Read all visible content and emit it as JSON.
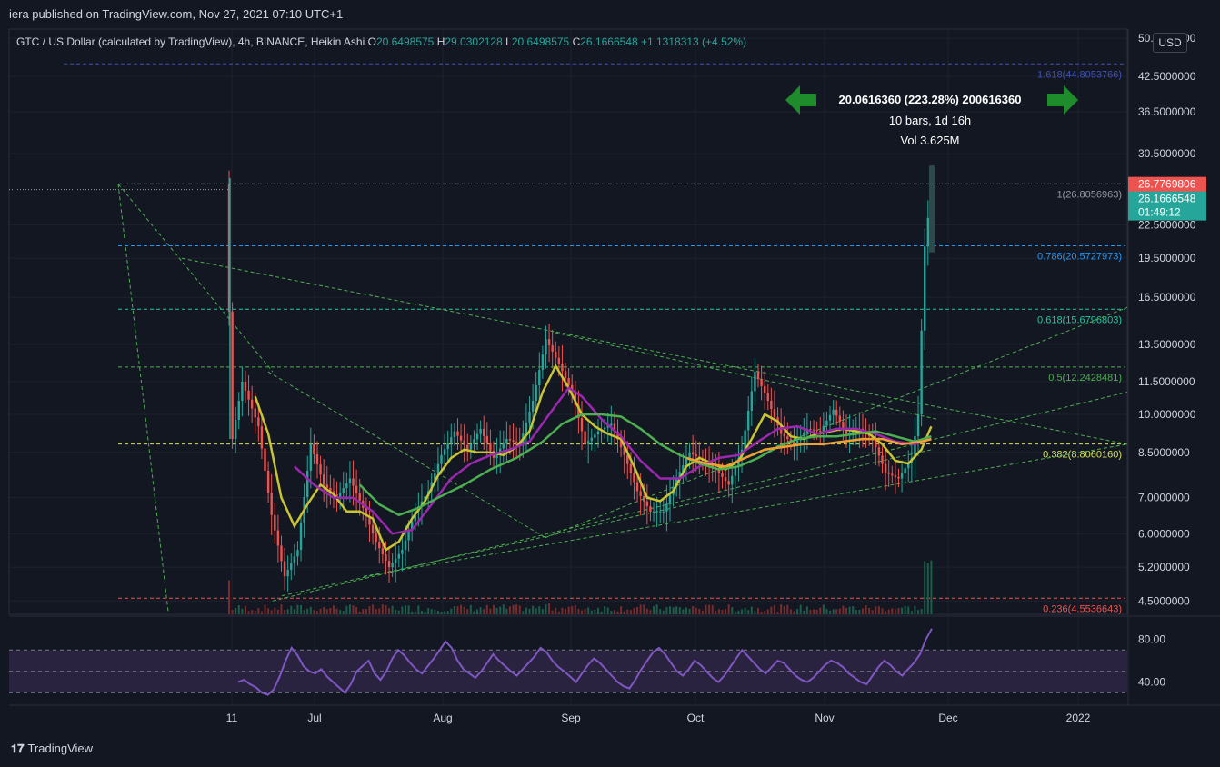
{
  "header": {
    "publisher": "iera published on TradingView.com, Nov 27, 2021 07:10 UTC+1"
  },
  "legend": {
    "symbol": "GTC / US Dollar (calculated by TradingView), 4h, BINANCE, Heikin Ashi",
    "o_label": "O",
    "o_value": "20.6498575",
    "h_label": "H",
    "h_value": "29.0302128",
    "l_label": "L",
    "l_value": "20.6498575",
    "c_label": "C",
    "c_value": "26.1666548",
    "change": "+1.1318313 (+4.52%)"
  },
  "currency": "USD",
  "footer": {
    "brand": "TradingView",
    "logo_icon": "tv-logo-icon"
  },
  "colors": {
    "bg": "#131722",
    "up": "#26a69a",
    "down": "#ef5350",
    "ma_yellow": "#c9c42f",
    "ma_purple": "#9c27b0",
    "ma_green": "#4caf50",
    "ma_orange": "#f0a030",
    "rsi": "#7e57c2"
  },
  "chart_data": {
    "type": "candlestick",
    "price_scale": "log",
    "y_ticks": [
      "50.0000000",
      "42.5000000",
      "36.5000000",
      "30.5000000",
      "22.5000000",
      "19.5000000",
      "16.5000000",
      "13.5000000",
      "11.5000000",
      "10.0000000",
      "8.5000000",
      "7.0000000",
      "6.0000000",
      "5.2000000",
      "4.5000000"
    ],
    "y_tick_values": [
      50,
      42.5,
      36.5,
      30.5,
      22.5,
      19.5,
      16.5,
      13.5,
      11.5,
      10,
      8.5,
      7,
      6,
      5.2,
      4.5
    ],
    "x_ticks": [
      "11",
      "Jul",
      "Aug",
      "Sep",
      "Oct",
      "Nov",
      "Dec",
      "2022"
    ],
    "price_labels": [
      {
        "text": "26.7769806",
        "value": 26.7769806,
        "color": "#ef5350"
      },
      {
        "text": "26.1666548",
        "value": 26.1666548,
        "color": "#26a69a",
        "sub": "01:49:12"
      }
    ],
    "fib_levels": [
      {
        "label": "1.618(44.8053766)",
        "value": 44.8053766,
        "color": "#3f51b5"
      },
      {
        "label": "1(26.8056963)",
        "value": 26.8056963,
        "color": "#9598a1"
      },
      {
        "label": "0.786(20.5727973)",
        "value": 20.5727973,
        "color": "#2196f3"
      },
      {
        "label": "0.618(15.6796803)",
        "value": 15.6796803,
        "color": "#26c6a0"
      },
      {
        "label": "0.5(12.2428481)",
        "value": 12.2428481,
        "color": "#4caf50"
      },
      {
        "label": "0.382(8.8060160)",
        "value": 8.806016,
        "color": "#d4e157"
      },
      {
        "label": "0.236(4.5536643)",
        "value": 4.5536643,
        "color": "#ef5350"
      }
    ],
    "measure": {
      "line1": "20.0616360 (223.28%) 200616360",
      "line2": "10 bars, 1d 16h",
      "line3": "Vol 3.625M"
    },
    "price_path": [
      [
        0,
        26.8
      ],
      [
        2,
        9.0
      ],
      [
        5,
        11.5
      ],
      [
        10,
        9.5
      ],
      [
        14,
        6.5
      ],
      [
        18,
        5.0
      ],
      [
        22,
        5.6
      ],
      [
        26,
        8.8
      ],
      [
        30,
        7.4
      ],
      [
        34,
        7.0
      ],
      [
        38,
        7.6
      ],
      [
        42,
        6.7
      ],
      [
        46,
        5.8
      ],
      [
        50,
        5.2
      ],
      [
        54,
        5.6
      ],
      [
        58,
        6.6
      ],
      [
        62,
        7.2
      ],
      [
        66,
        8.4
      ],
      [
        70,
        9.3
      ],
      [
        74,
        8.6
      ],
      [
        78,
        9.4
      ],
      [
        82,
        8.3
      ],
      [
        86,
        9.0
      ],
      [
        90,
        8.8
      ],
      [
        94,
        10.6
      ],
      [
        98,
        13.8
      ],
      [
        102,
        12.4
      ],
      [
        106,
        11.0
      ],
      [
        110,
        8.8
      ],
      [
        114,
        9.3
      ],
      [
        118,
        9.6
      ],
      [
        122,
        8.4
      ],
      [
        126,
        7.2
      ],
      [
        130,
        6.6
      ],
      [
        134,
        6.6
      ],
      [
        138,
        7.6
      ],
      [
        142,
        8.5
      ],
      [
        146,
        8.2
      ],
      [
        150,
        7.9
      ],
      [
        154,
        7.4
      ],
      [
        158,
        8.6
      ],
      [
        162,
        12.0
      ],
      [
        166,
        10.6
      ],
      [
        170,
        9.2
      ],
      [
        174,
        8.8
      ],
      [
        178,
        9.4
      ],
      [
        182,
        9.3
      ],
      [
        186,
        10.2
      ],
      [
        190,
        9.2
      ],
      [
        194,
        9.4
      ],
      [
        198,
        9.0
      ],
      [
        202,
        7.8
      ],
      [
        206,
        7.6
      ],
      [
        210,
        8.3
      ],
      [
        212,
        10.0
      ],
      [
        214,
        20.5
      ],
      [
        216,
        26.2
      ]
    ],
    "moving_averages": [
      {
        "name": "",
        "color": "#c9c42f",
        "points": [
          [
            8,
            10.8
          ],
          [
            12,
            9.2
          ],
          [
            16,
            7.0
          ],
          [
            20,
            6.2
          ],
          [
            24,
            6.8
          ],
          [
            28,
            7.4
          ],
          [
            32,
            7.1
          ],
          [
            36,
            6.6
          ],
          [
            40,
            6.6
          ],
          [
            44,
            6.4
          ],
          [
            48,
            5.6
          ],
          [
            52,
            5.8
          ],
          [
            56,
            6.4
          ],
          [
            60,
            6.9
          ],
          [
            64,
            7.7
          ],
          [
            68,
            8.3
          ],
          [
            72,
            8.6
          ],
          [
            76,
            8.5
          ],
          [
            80,
            8.5
          ],
          [
            84,
            8.4
          ],
          [
            88,
            8.7
          ],
          [
            92,
            9.3
          ],
          [
            96,
            11.0
          ],
          [
            100,
            12.3
          ],
          [
            104,
            11.2
          ],
          [
            108,
            10.0
          ],
          [
            112,
            9.5
          ],
          [
            116,
            9.2
          ],
          [
            120,
            9.0
          ],
          [
            124,
            8.0
          ],
          [
            128,
            7.0
          ],
          [
            132,
            6.9
          ],
          [
            136,
            7.2
          ],
          [
            140,
            8.0
          ],
          [
            144,
            8.3
          ],
          [
            148,
            8.1
          ],
          [
            152,
            7.9
          ],
          [
            156,
            8.2
          ],
          [
            160,
            9.0
          ],
          [
            164,
            10.0
          ],
          [
            168,
            9.7
          ],
          [
            172,
            9.1
          ],
          [
            176,
            9.0
          ],
          [
            180,
            9.2
          ],
          [
            184,
            9.3
          ],
          [
            188,
            9.4
          ],
          [
            192,
            9.3
          ],
          [
            196,
            9.2
          ],
          [
            200,
            8.8
          ],
          [
            204,
            8.2
          ],
          [
            208,
            8.1
          ],
          [
            212,
            8.6
          ],
          [
            215,
            9.5
          ]
        ]
      },
      {
        "name": "",
        "color": "#9c27b0",
        "points": [
          [
            20,
            8.0
          ],
          [
            26,
            7.4
          ],
          [
            32,
            7.0
          ],
          [
            38,
            7.0
          ],
          [
            44,
            6.6
          ],
          [
            50,
            6.0
          ],
          [
            56,
            6.1
          ],
          [
            62,
            6.8
          ],
          [
            68,
            7.6
          ],
          [
            74,
            8.1
          ],
          [
            80,
            8.4
          ],
          [
            86,
            8.6
          ],
          [
            92,
            8.9
          ],
          [
            98,
            10.0
          ],
          [
            104,
            11.2
          ],
          [
            108,
            10.8
          ],
          [
            114,
            9.8
          ],
          [
            120,
            9.1
          ],
          [
            126,
            8.2
          ],
          [
            132,
            7.6
          ],
          [
            138,
            7.6
          ],
          [
            144,
            8.0
          ],
          [
            150,
            8.3
          ],
          [
            156,
            8.4
          ],
          [
            162,
            8.9
          ],
          [
            168,
            9.4
          ],
          [
            174,
            9.5
          ],
          [
            180,
            9.2
          ],
          [
            186,
            9.4
          ],
          [
            192,
            9.4
          ],
          [
            198,
            9.2
          ],
          [
            204,
            8.9
          ],
          [
            210,
            8.8
          ],
          [
            215,
            9.0
          ]
        ]
      },
      {
        "name": "",
        "color": "#4caf50",
        "points": [
          [
            40,
            7.4
          ],
          [
            46,
            6.8
          ],
          [
            52,
            6.5
          ],
          [
            58,
            6.7
          ],
          [
            64,
            7.0
          ],
          [
            72,
            7.4
          ],
          [
            80,
            7.9
          ],
          [
            88,
            8.3
          ],
          [
            96,
            8.9
          ],
          [
            102,
            9.6
          ],
          [
            108,
            10.0
          ],
          [
            114,
            10.0
          ],
          [
            120,
            9.9
          ],
          [
            126,
            9.4
          ],
          [
            132,
            8.8
          ],
          [
            138,
            8.4
          ],
          [
            144,
            8.1
          ],
          [
            150,
            7.9
          ],
          [
            156,
            8.0
          ],
          [
            162,
            8.3
          ],
          [
            168,
            8.7
          ],
          [
            174,
            9.0
          ],
          [
            180,
            9.1
          ],
          [
            186,
            9.1
          ],
          [
            192,
            9.2
          ],
          [
            198,
            9.3
          ],
          [
            204,
            9.1
          ],
          [
            210,
            8.9
          ],
          [
            215,
            9.1
          ]
        ]
      },
      {
        "name": "",
        "color": "#f0a030",
        "points": [
          [
            140,
            8.3
          ],
          [
            146,
            8.1
          ],
          [
            152,
            8.0
          ],
          [
            158,
            8.3
          ],
          [
            164,
            8.6
          ],
          [
            170,
            8.7
          ],
          [
            176,
            8.8
          ],
          [
            182,
            8.8
          ],
          [
            188,
            8.9
          ],
          [
            194,
            9.0
          ],
          [
            200,
            9.0
          ],
          [
            206,
            8.8
          ],
          [
            212,
            8.9
          ],
          [
            215,
            9.0
          ]
        ]
      }
    ],
    "rsi": {
      "ticks": [
        "80.00",
        "40.00"
      ],
      "tick_values": [
        80,
        40
      ],
      "band": [
        30,
        70
      ],
      "values": [
        40,
        42,
        38,
        35,
        30,
        28,
        33,
        45,
        60,
        72,
        65,
        55,
        50,
        48,
        52,
        45,
        40,
        35,
        30,
        38,
        50,
        55,
        60,
        48,
        42,
        50,
        62,
        70,
        65,
        58,
        52,
        48,
        55,
        62,
        70,
        78,
        72,
        60,
        52,
        48,
        44,
        50,
        58,
        66,
        60,
        55,
        50,
        46,
        52,
        58,
        64,
        72,
        68,
        60,
        54,
        50,
        45,
        40,
        48,
        56,
        62,
        58,
        52,
        46,
        40,
        36,
        34,
        42,
        52,
        60,
        68,
        72,
        66,
        58,
        50,
        46,
        52,
        60,
        56,
        50,
        44,
        40,
        46,
        54,
        62,
        70,
        64,
        58,
        52,
        48,
        54,
        60,
        58,
        52,
        46,
        42,
        40,
        44,
        50,
        56,
        60,
        58,
        54,
        48,
        44,
        40,
        38,
        46,
        54,
        60,
        56,
        50,
        46,
        52,
        58,
        66,
        80,
        90
      ]
    }
  }
}
